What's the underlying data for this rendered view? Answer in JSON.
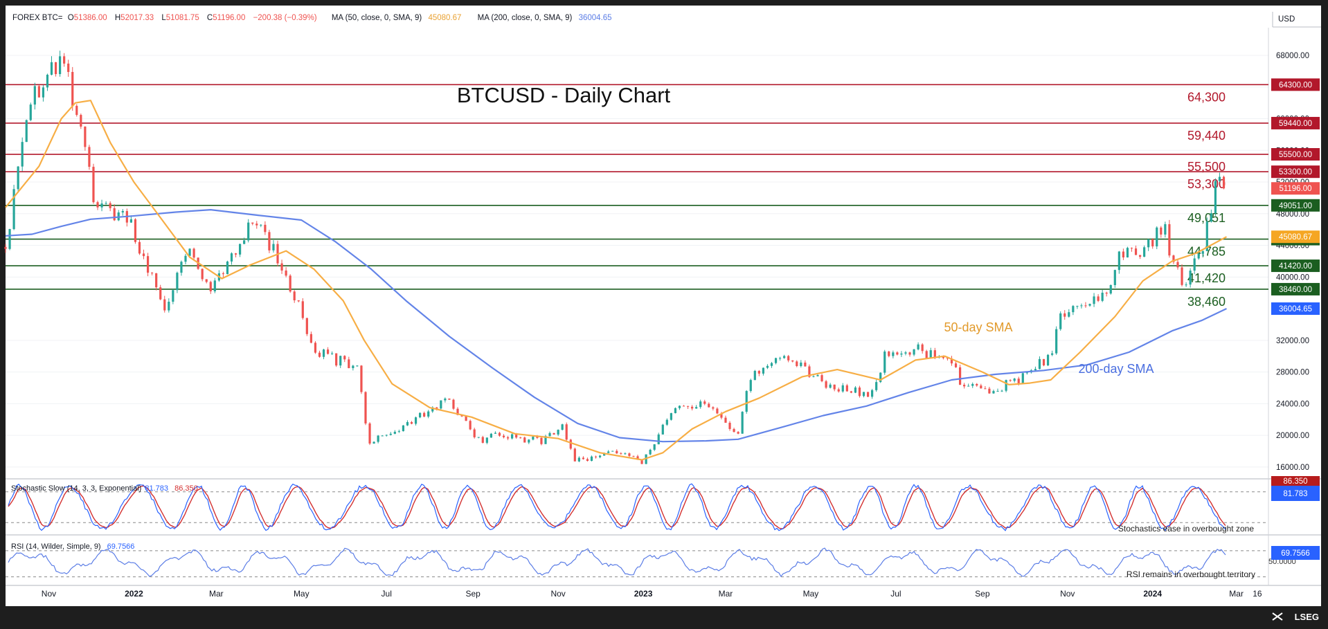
{
  "header": {
    "symbol": "FOREX BTC=",
    "ohlc": [
      {
        "label": "O",
        "value": "51386.00"
      },
      {
        "label": "H",
        "value": "52017.33"
      },
      {
        "label": "L",
        "value": "51081.75"
      },
      {
        "label": "C",
        "value": "51196.00"
      },
      {
        "label": "",
        "value": "−200.38 (−0.39%)"
      }
    ],
    "ma50_label": "MA (50, close, 0, SMA, 9)",
    "ma50_value": "45080.67",
    "ma200_label": "MA (200, close, 0, SMA, 9)",
    "ma200_value": "36004.65",
    "currency": "USD"
  },
  "brand": "LSEG",
  "colors": {
    "background": "#ffffff",
    "frame": "#1e1e1e",
    "up": "#26a69a",
    "down": "#ef5350",
    "sma50": "#f7ae45",
    "sma200": "#6384e8",
    "resistance": "#b2182b",
    "support": "#1b5e20"
  },
  "chart_data": {
    "type": "candlestick",
    "title": "BTCUSD - Daily Chart",
    "ylim": [
      14500,
      71500
    ],
    "y_ticks": [
      "68000.00",
      "64000.00",
      "60000.00",
      "56000.00",
      "52000.00",
      "48000.00",
      "44000.00",
      "40000.00",
      "32000.00",
      "28000.00",
      "24000.00",
      "20000.00",
      "16000.00"
    ],
    "x_ticks": [
      "Nov",
      "2022",
      "Mar",
      "May",
      "Jul",
      "Sep",
      "Nov",
      "2023",
      "Mar",
      "May",
      "Jul",
      "Sep",
      "Nov",
      "2024",
      "Mar",
      "16"
    ],
    "x_range": [
      "2021-10-01",
      "2024-03-24"
    ],
    "levels": [
      {
        "value": 64300,
        "tag": "64300.00",
        "label": "64,300",
        "kind": "resistance"
      },
      {
        "value": 59440,
        "tag": "59440.00",
        "label": "59,440",
        "kind": "resistance"
      },
      {
        "value": 55500,
        "tag": "55500.00",
        "label": "55,500",
        "kind": "resistance"
      },
      {
        "value": 53300,
        "tag": "53300.00",
        "label": "53,300",
        "kind": "resistance"
      },
      {
        "value": 49051,
        "tag": "49051.00",
        "label": "49,051",
        "kind": "support"
      },
      {
        "value": 44785,
        "tag": "44785.00",
        "label": "44,785",
        "kind": "support"
      },
      {
        "value": 41420,
        "tag": "41420.00",
        "label": "41,420",
        "kind": "support"
      },
      {
        "value": 38460,
        "tag": "38460.00",
        "label": "38,460",
        "kind": "support"
      }
    ],
    "last_price": {
      "value": 51196,
      "tag": "51196.00"
    },
    "sma50_last": {
      "value": 45080.67,
      "tag": "45080.67"
    },
    "sma200_last": {
      "value": 36004.65,
      "tag": "36004.65"
    },
    "price_path": [
      [
        "2021-10-01",
        43800
      ],
      [
        "2021-10-20",
        63000
      ],
      [
        "2021-11-10",
        67500
      ],
      [
        "2021-11-28",
        57000
      ],
      [
        "2021-12-04",
        49000
      ],
      [
        "2021-12-28",
        47500
      ],
      [
        "2022-01-22",
        36000
      ],
      [
        "2022-02-10",
        44000
      ],
      [
        "2022-02-24",
        37500
      ],
      [
        "2022-03-29",
        47300
      ],
      [
        "2022-04-20",
        40500
      ],
      [
        "2022-05-10",
        31000
      ],
      [
        "2022-05-25",
        29500
      ],
      [
        "2022-06-10",
        29000
      ],
      [
        "2022-06-18",
        19000
      ],
      [
        "2022-07-10",
        21000
      ],
      [
        "2022-08-14",
        24300
      ],
      [
        "2022-09-07",
        19000
      ],
      [
        "2022-09-15",
        20200
      ],
      [
        "2022-10-20",
        19200
      ],
      [
        "2022-11-05",
        21200
      ],
      [
        "2022-11-12",
        16700
      ],
      [
        "2022-12-14",
        17800
      ],
      [
        "2023-01-01",
        16600
      ],
      [
        "2023-01-21",
        22800
      ],
      [
        "2023-02-15",
        24500
      ],
      [
        "2023-03-10",
        20000
      ],
      [
        "2023-03-19",
        27500
      ],
      [
        "2023-04-13",
        30300
      ],
      [
        "2023-05-12",
        26300
      ],
      [
        "2023-06-15",
        25100
      ],
      [
        "2023-06-24",
        30500
      ],
      [
        "2023-07-13",
        31000
      ],
      [
        "2023-08-10",
        29500
      ],
      [
        "2023-08-18",
        26100
      ],
      [
        "2023-09-10",
        25800
      ],
      [
        "2023-10-01",
        27500
      ],
      [
        "2023-10-20",
        30000
      ],
      [
        "2023-10-25",
        34400
      ],
      [
        "2023-11-15",
        36500
      ],
      [
        "2023-12-03",
        39500
      ],
      [
        "2023-12-08",
        43800
      ],
      [
        "2023-12-20",
        42500
      ],
      [
        "2024-01-10",
        46500
      ],
      [
        "2024-01-12",
        42800
      ],
      [
        "2024-01-23",
        39500
      ],
      [
        "2024-02-05",
        42700
      ],
      [
        "2024-02-10",
        47000
      ],
      [
        "2024-02-15",
        51800
      ],
      [
        "2024-02-21",
        51500
      ],
      [
        "2024-02-23",
        51196
      ]
    ],
    "sma50_path": [
      [
        "2021-10-01",
        48800
      ],
      [
        "2021-10-25",
        54000
      ],
      [
        "2021-11-10",
        60000
      ],
      [
        "2021-11-20",
        62000
      ],
      [
        "2021-12-01",
        62300
      ],
      [
        "2021-12-15",
        57000
      ],
      [
        "2022-01-01",
        52000
      ],
      [
        "2022-01-20",
        47500
      ],
      [
        "2022-02-10",
        42500
      ],
      [
        "2022-03-05",
        39800
      ],
      [
        "2022-03-25",
        41500
      ],
      [
        "2022-04-20",
        43300
      ],
      [
        "2022-05-10",
        41000
      ],
      [
        "2022-05-31",
        37000
      ],
      [
        "2022-06-15",
        32000
      ],
      [
        "2022-07-05",
        26500
      ],
      [
        "2022-08-01",
        23500
      ],
      [
        "2022-08-31",
        22300
      ],
      [
        "2022-10-01",
        20200
      ],
      [
        "2022-11-01",
        19600
      ],
      [
        "2022-12-01",
        17800
      ],
      [
        "2022-12-31",
        16900
      ],
      [
        "2023-01-15",
        17800
      ],
      [
        "2023-02-05",
        20800
      ],
      [
        "2023-03-01",
        23000
      ],
      [
        "2023-03-25",
        24700
      ],
      [
        "2023-04-25",
        27400
      ],
      [
        "2023-05-20",
        28300
      ],
      [
        "2023-06-20",
        27000
      ],
      [
        "2023-07-15",
        29500
      ],
      [
        "2023-08-05",
        30000
      ],
      [
        "2023-09-01",
        28000
      ],
      [
        "2023-09-20",
        26400
      ],
      [
        "2023-10-05",
        26600
      ],
      [
        "2023-10-20",
        27000
      ],
      [
        "2023-11-10",
        30500
      ],
      [
        "2023-12-05",
        35000
      ],
      [
        "2023-12-25",
        39500
      ],
      [
        "2024-01-15",
        42000
      ],
      [
        "2024-02-01",
        43000
      ],
      [
        "2024-02-23",
        45080
      ]
    ],
    "sma200_path": [
      [
        "2021-10-01",
        45200
      ],
      [
        "2021-10-20",
        45400
      ],
      [
        "2021-11-10",
        46400
      ],
      [
        "2021-12-01",
        47300
      ],
      [
        "2021-12-31",
        47700
      ],
      [
        "2022-01-31",
        48200
      ],
      [
        "2022-02-25",
        48500
      ],
      [
        "2022-03-31",
        47800
      ],
      [
        "2022-05-01",
        47200
      ],
      [
        "2022-05-25",
        44500
      ],
      [
        "2022-06-20",
        41000
      ],
      [
        "2022-07-15",
        37000
      ],
      [
        "2022-08-15",
        32500
      ],
      [
        "2022-09-15",
        28500
      ],
      [
        "2022-10-15",
        24800
      ],
      [
        "2022-11-15",
        21500
      ],
      [
        "2022-12-15",
        19700
      ],
      [
        "2023-01-15",
        19200
      ],
      [
        "2023-02-15",
        19300
      ],
      [
        "2023-03-10",
        19500
      ],
      [
        "2023-04-10",
        21000
      ],
      [
        "2023-05-10",
        22500
      ],
      [
        "2023-06-10",
        23700
      ],
      [
        "2023-07-10",
        25400
      ],
      [
        "2023-08-10",
        27000
      ],
      [
        "2023-09-10",
        27700
      ],
      [
        "2023-10-15",
        28200
      ],
      [
        "2023-11-15",
        28900
      ],
      [
        "2023-12-15",
        30500
      ],
      [
        "2024-01-15",
        33200
      ],
      [
        "2024-02-05",
        34500
      ],
      [
        "2024-02-23",
        36004
      ]
    ],
    "annotations": [
      {
        "text": "50-day SMA",
        "color": "#e29a2b"
      },
      {
        "text": "200-day SMA",
        "color": "#4b6fe0"
      }
    ],
    "stochastic": {
      "title": "Stochastic Slow (14, 3, 3, Exponential)",
      "k_value": "81.783",
      "d_value": "86.350",
      "note": "Stochastics ease in overbought zone"
    },
    "rsi": {
      "title": "RSI (14, Wilder, Simple, 9)",
      "value": "69.7566",
      "tick": "50.0000",
      "note": "RSI remains in overbought territory"
    }
  }
}
